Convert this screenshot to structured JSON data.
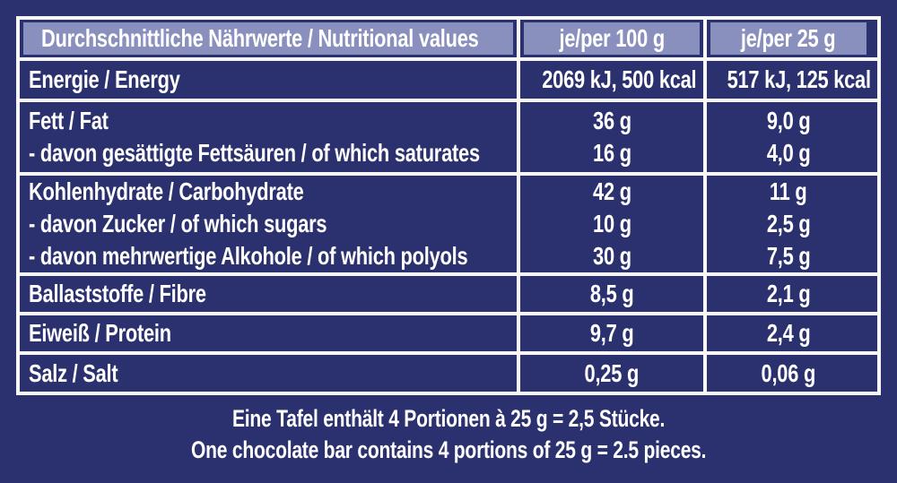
{
  "colors": {
    "background": "#2b316e",
    "header_fill": "#8990bd",
    "grid_lines": "#f7f7f7",
    "text": "#ffffff"
  },
  "table": {
    "header": {
      "label": "Durchschnittliche Nährwerte / Nutritional values",
      "per100": "je/per 100 g",
      "per25": "je/per 25 g"
    },
    "rows": [
      {
        "name": "energy",
        "labels": [
          "Energie / Energy"
        ],
        "per100": [
          "2069 kJ, 500 kcal"
        ],
        "per25": [
          "517 kJ, 125 kcal"
        ]
      },
      {
        "name": "fat",
        "labels": [
          "Fett / Fat",
          "- davon gesättigte Fettsäuren / of which saturates"
        ],
        "per100": [
          "36 g",
          "16 g"
        ],
        "per25": [
          "9,0 g",
          "4,0 g"
        ]
      },
      {
        "name": "carbohydrate",
        "labels": [
          "Kohlenhydrate / Carbohydrate",
          "- davon Zucker / of which sugars",
          "- davon mehrwertige Alkohole / of which polyols"
        ],
        "per100": [
          "42 g",
          "10 g",
          "30 g"
        ],
        "per25": [
          "11 g",
          "2,5 g",
          "7,5 g"
        ]
      },
      {
        "name": "fibre",
        "labels": [
          "Ballaststoffe / Fibre"
        ],
        "per100": [
          "8,5 g"
        ],
        "per25": [
          "2,1 g"
        ]
      },
      {
        "name": "protein",
        "labels": [
          "Eiweiß / Protein"
        ],
        "per100": [
          "9,7 g"
        ],
        "per25": [
          "2,4 g"
        ]
      },
      {
        "name": "salt",
        "labels": [
          "Salz / Salt"
        ],
        "per100": [
          "0,25 g"
        ],
        "per25": [
          "0,06 g"
        ]
      }
    ]
  },
  "footer": {
    "line_de": "Eine Tafel enthält 4 Portionen à 25 g = 2,5 Stücke.",
    "line_en": "One chocolate bar contains 4 portions of 25 g = 2.5 pieces."
  }
}
